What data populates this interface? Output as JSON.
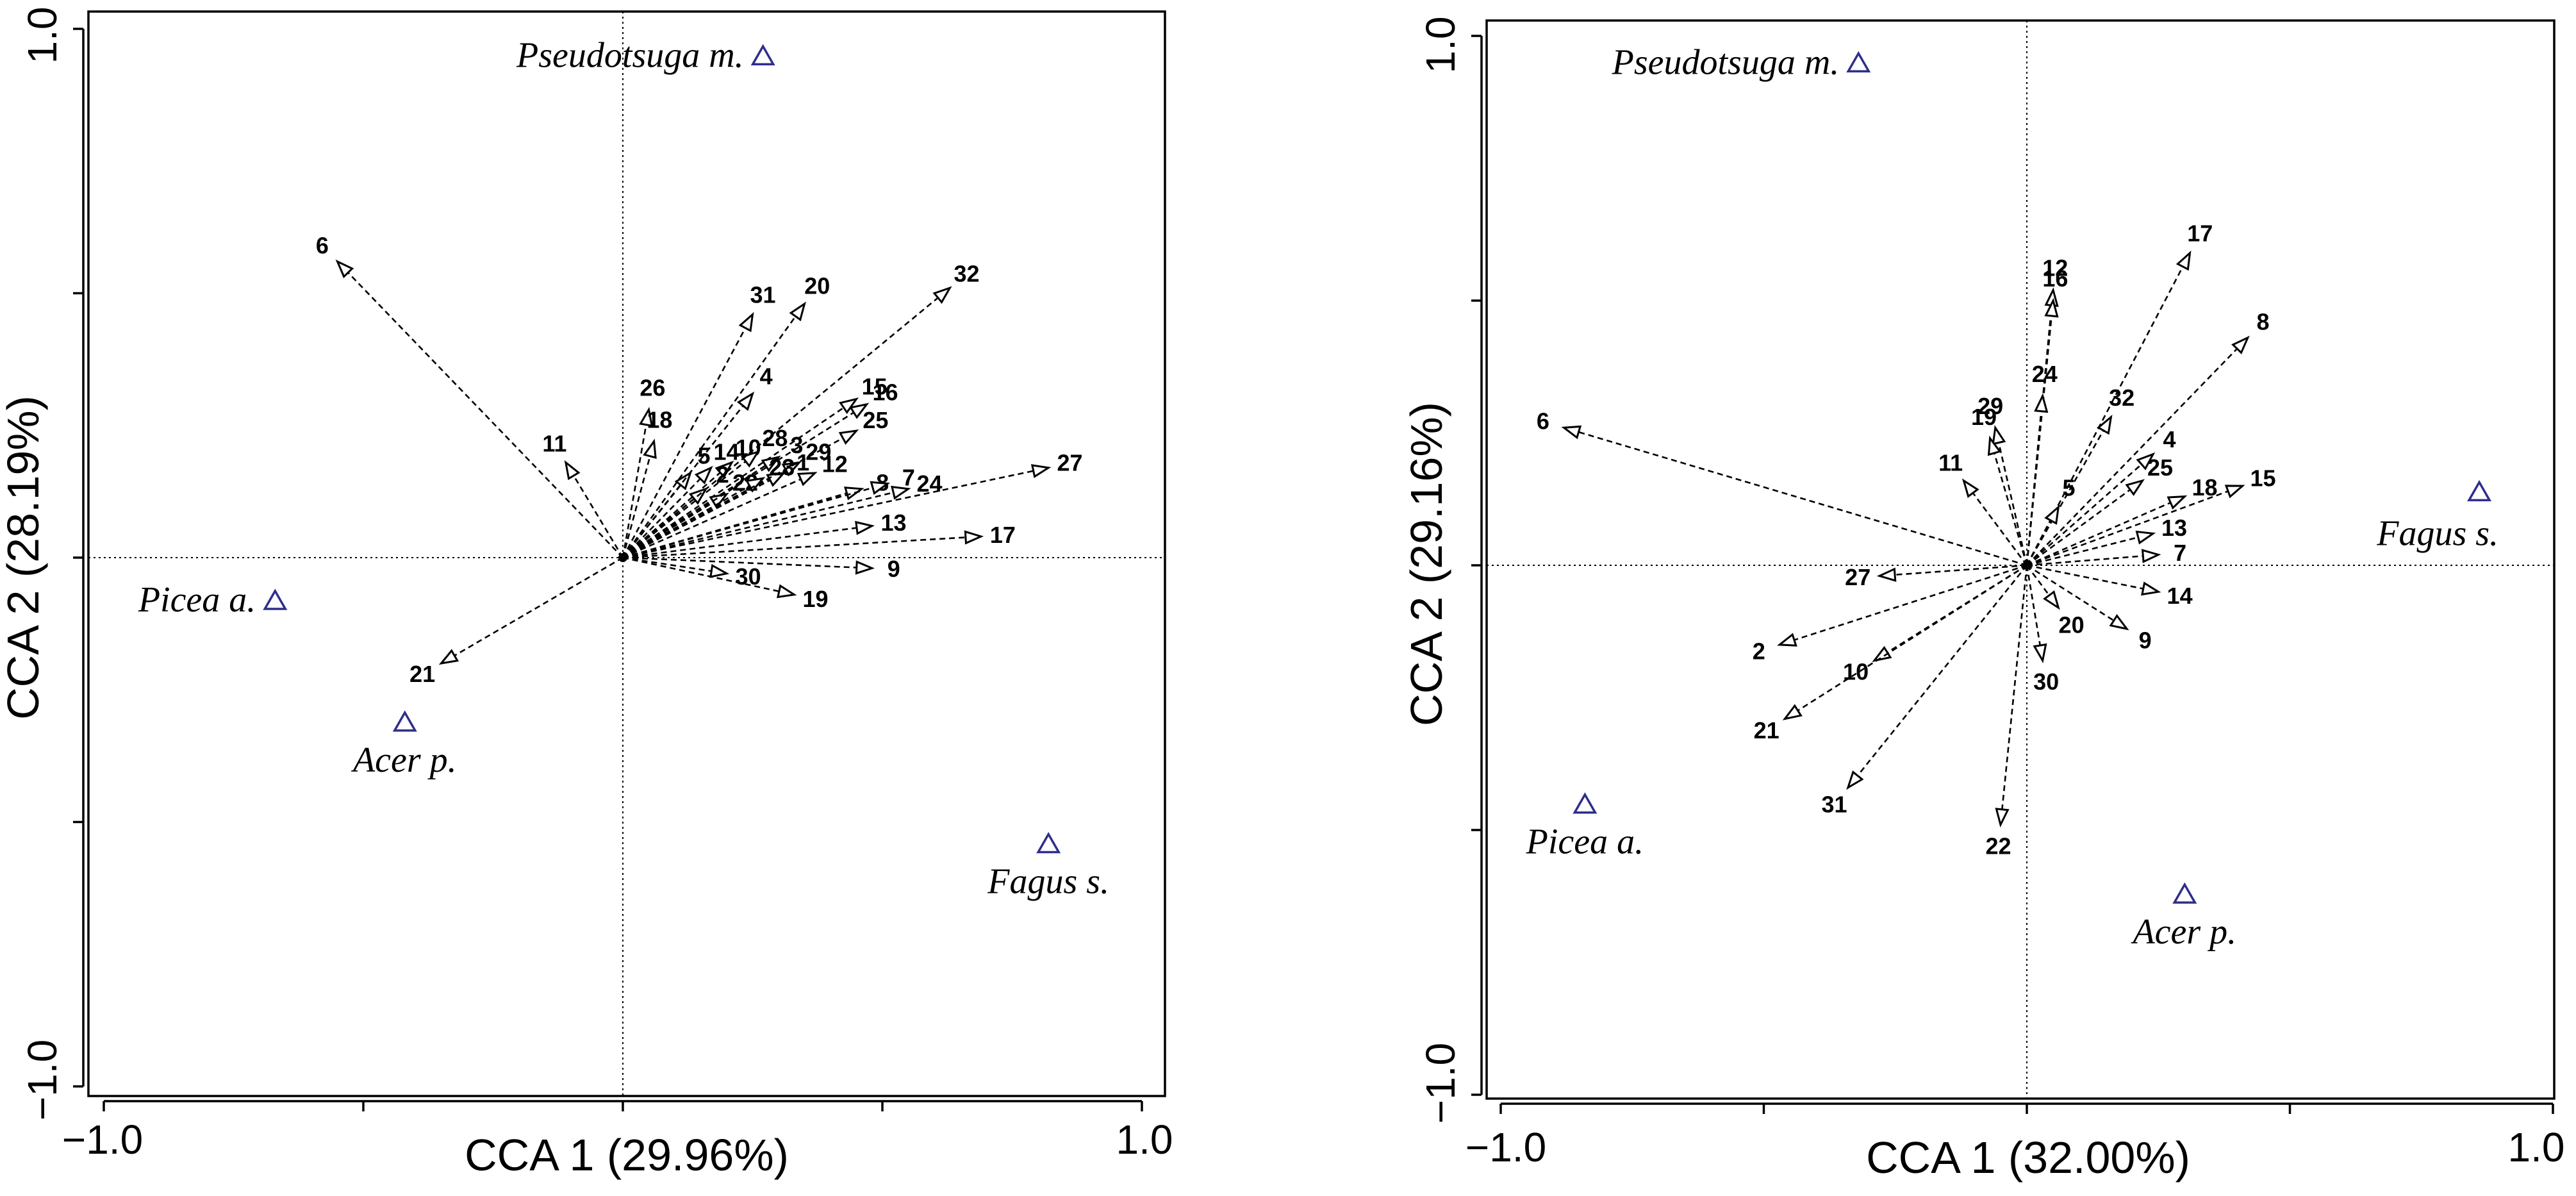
{
  "chart_data": [
    {
      "type": "scatter",
      "title": "",
      "xlabel": "CCA 1 (29.96%)",
      "ylabel": "CCA 2 (28.19%)",
      "xlim": [
        -1.0,
        1.0
      ],
      "ylim": [
        -1.0,
        1.0
      ],
      "xtick_labels": [
        "−1.0",
        "1.0"
      ],
      "ytick_labels": [
        "1.0",
        "−1.0"
      ],
      "zero_lines": true,
      "species": [
        {
          "name": "Pseudotsuga m.",
          "x": 0.27,
          "y": 0.95
        },
        {
          "name": "Picea a.",
          "x": -0.67,
          "y": -0.08
        },
        {
          "name": "Acer p.",
          "x": -0.42,
          "y": -0.31
        },
        {
          "name": "Fagus s.",
          "x": 0.82,
          "y": -0.54
        }
      ],
      "variables": [
        {
          "id": "6",
          "x": -0.55,
          "y": 0.56
        },
        {
          "id": "11",
          "x": -0.11,
          "y": 0.18
        },
        {
          "id": "26",
          "x": 0.05,
          "y": 0.28
        },
        {
          "id": "18",
          "x": 0.06,
          "y": 0.22
        },
        {
          "id": "5",
          "x": 0.13,
          "y": 0.16
        },
        {
          "id": "14",
          "x": 0.17,
          "y": 0.17
        },
        {
          "id": "10",
          "x": 0.21,
          "y": 0.18
        },
        {
          "id": "28",
          "x": 0.26,
          "y": 0.2
        },
        {
          "id": "3",
          "x": 0.3,
          "y": 0.19
        },
        {
          "id": "29",
          "x": 0.34,
          "y": 0.18
        },
        {
          "id": "1",
          "x": 0.31,
          "y": 0.16
        },
        {
          "id": "2",
          "x": 0.16,
          "y": 0.13
        },
        {
          "id": "22",
          "x": 0.2,
          "y": 0.12
        },
        {
          "id": "23",
          "x": 0.27,
          "y": 0.15
        },
        {
          "id": "12",
          "x": 0.37,
          "y": 0.16
        },
        {
          "id": "16",
          "x": 0.47,
          "y": 0.29
        },
        {
          "id": "25",
          "x": 0.45,
          "y": 0.24
        },
        {
          "id": "15",
          "x": 0.45,
          "y": 0.3
        },
        {
          "id": "4",
          "x": 0.25,
          "y": 0.31
        },
        {
          "id": "31",
          "x": 0.25,
          "y": 0.46
        },
        {
          "id": "20",
          "x": 0.35,
          "y": 0.48
        },
        {
          "id": "32",
          "x": 0.63,
          "y": 0.51
        },
        {
          "id": "8",
          "x": 0.46,
          "y": 0.13
        },
        {
          "id": "7",
          "x": 0.51,
          "y": 0.14
        },
        {
          "id": "24",
          "x": 0.55,
          "y": 0.13
        },
        {
          "id": "27",
          "x": 0.82,
          "y": 0.17
        },
        {
          "id": "13",
          "x": 0.48,
          "y": 0.06
        },
        {
          "id": "17",
          "x": 0.69,
          "y": 0.04
        },
        {
          "id": "9",
          "x": 0.48,
          "y": -0.02
        },
        {
          "id": "19",
          "x": 0.33,
          "y": -0.07
        },
        {
          "id": "30",
          "x": 0.2,
          "y": -0.03
        },
        {
          "id": "21",
          "x": -0.35,
          "y": -0.2
        }
      ]
    },
    {
      "type": "scatter",
      "title": "",
      "xlabel": "CCA 1 (32.00%)",
      "ylabel": "CCA 2 (29.16%)",
      "xlim": [
        -1.0,
        1.0
      ],
      "ylim": [
        -1.0,
        1.0
      ],
      "xtick_labels": [
        "−1.0",
        "1.0"
      ],
      "ytick_labels": [
        "1.0",
        "−1.0"
      ],
      "zero_lines": true,
      "species": [
        {
          "name": "Pseudotsuga m.",
          "x": -0.32,
          "y": 0.95
        },
        {
          "name": "Picea a.",
          "x": -0.84,
          "y": -0.45
        },
        {
          "name": "Acer p.",
          "x": 0.3,
          "y": -0.62
        },
        {
          "name": "Fagus s.",
          "x": 0.86,
          "y": 0.14
        }
      ],
      "variables": [
        {
          "id": "6",
          "x": -0.88,
          "y": 0.26
        },
        {
          "id": "17",
          "x": 0.31,
          "y": 0.59
        },
        {
          "id": "12",
          "x": 0.05,
          "y": 0.52
        },
        {
          "id": "16",
          "x": 0.05,
          "y": 0.5
        },
        {
          "id": "8",
          "x": 0.42,
          "y": 0.43
        },
        {
          "id": "29",
          "x": -0.06,
          "y": 0.26
        },
        {
          "id": "24",
          "x": 0.03,
          "y": 0.32
        },
        {
          "id": "19",
          "x": -0.07,
          "y": 0.24
        },
        {
          "id": "32",
          "x": 0.16,
          "y": 0.28
        },
        {
          "id": "11",
          "x": -0.12,
          "y": 0.16
        },
        {
          "id": "5",
          "x": 0.06,
          "y": 0.11
        },
        {
          "id": "25",
          "x": 0.22,
          "y": 0.16
        },
        {
          "id": "4",
          "x": 0.24,
          "y": 0.21
        },
        {
          "id": "18",
          "x": 0.3,
          "y": 0.13
        },
        {
          "id": "15",
          "x": 0.41,
          "y": 0.15
        },
        {
          "id": "13",
          "x": 0.24,
          "y": 0.06
        },
        {
          "id": "7",
          "x": 0.25,
          "y": 0.02
        },
        {
          "id": "14",
          "x": 0.25,
          "y": -0.05
        },
        {
          "id": "9",
          "x": 0.19,
          "y": -0.12
        },
        {
          "id": "20",
          "x": 0.06,
          "y": -0.08
        },
        {
          "id": "30",
          "x": 0.03,
          "y": -0.18
        },
        {
          "id": "22",
          "x": -0.05,
          "y": -0.49
        },
        {
          "id": "27",
          "x": -0.28,
          "y": -0.02
        },
        {
          "id": "2",
          "x": -0.47,
          "y": -0.15
        },
        {
          "id": "10",
          "x": -0.29,
          "y": -0.18
        },
        {
          "id": "21",
          "x": -0.46,
          "y": -0.29
        },
        {
          "id": "31",
          "x": -0.34,
          "y": -0.42
        }
      ]
    }
  ]
}
